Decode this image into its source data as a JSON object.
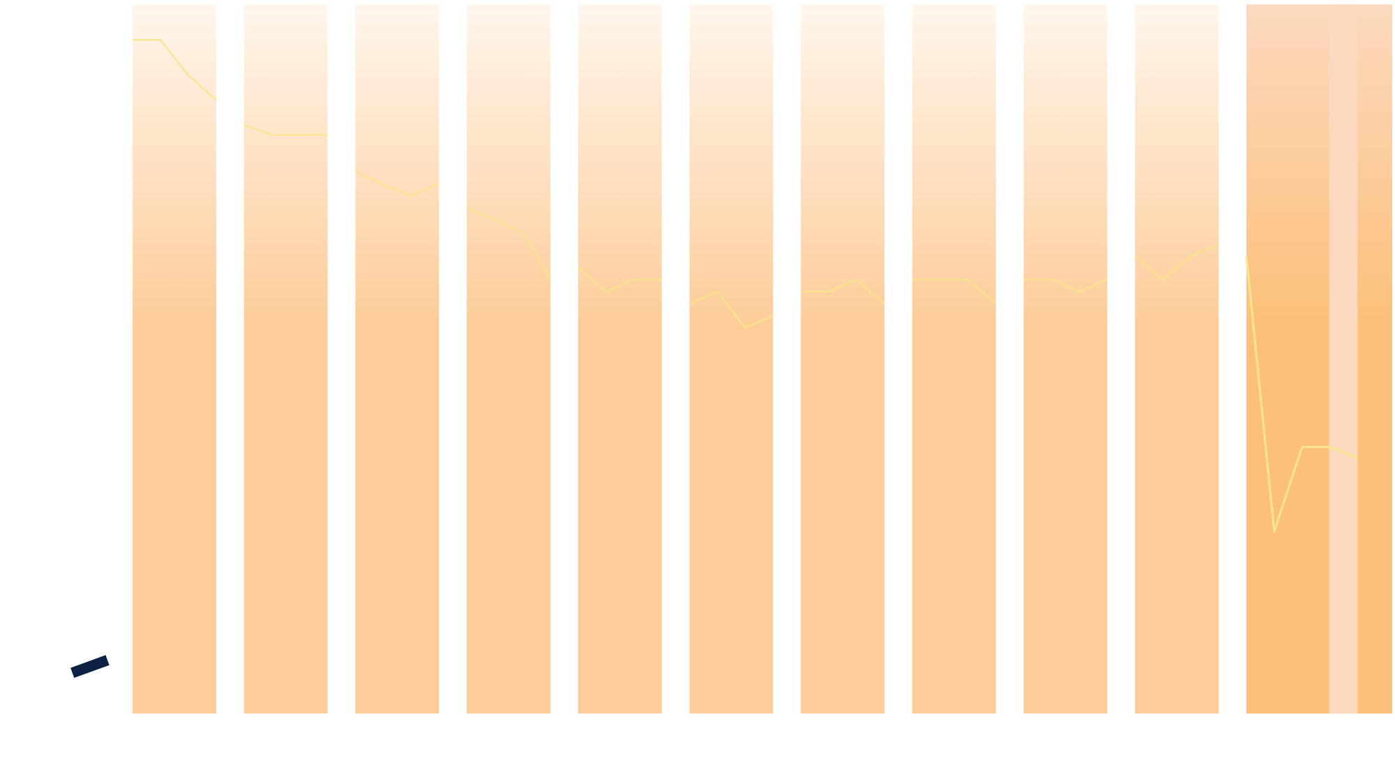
{
  "chart_data": {
    "type": "line",
    "ylim": [
      0,
      100
    ],
    "bar_color": "#fdcc99",
    "highlight_color": "#fcc07a",
    "series": [
      {
        "color": "#f7e58c",
        "values": [
          95,
          95,
          90,
          86.5,
          null,
          83,
          81.6,
          81.6,
          81.6,
          null,
          76.4,
          74.6,
          73,
          74.8,
          null,
          71.3,
          69.7,
          67.9,
          61.2,
          null,
          62.9,
          59.5,
          61.2,
          61.2,
          null,
          57.8,
          59.5,
          54.4,
          56.1,
          null,
          59.5,
          59.5,
          61.2,
          57.8,
          null,
          61.2,
          61.2,
          61.2,
          57.8,
          null,
          61.2,
          61.2,
          59.5,
          61.2,
          null,
          64.5,
          61.2,
          64.5,
          66.2,
          null,
          64.5,
          25.7,
          37.6,
          37.6,
          36
        ]
      }
    ]
  }
}
